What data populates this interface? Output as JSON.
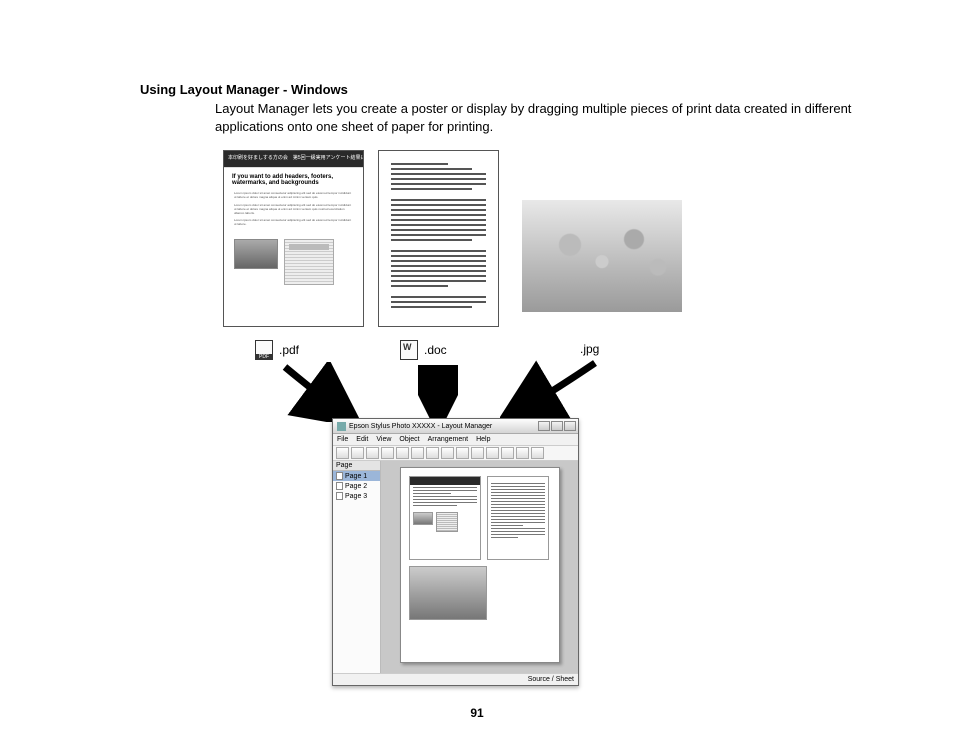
{
  "heading": "Using Layout Manager - Windows",
  "intro": "Layout Manager lets you create a poster or display by dragging multiple pieces of print data created in different applications onto one sheet of paper for printing.",
  "fileTypes": {
    "pdf": ".pdf",
    "doc": ".doc",
    "jpg": ".jpg"
  },
  "layoutManager": {
    "title": "Epson Stylus Photo XXXXX - Layout Manager",
    "menu": [
      "File",
      "Edit",
      "View",
      "Object",
      "Arrangement",
      "Help"
    ],
    "toolbarButtonCount": 14,
    "sidebar": {
      "header": "Page",
      "items": [
        "Page 1",
        "Page 2",
        "Page 3"
      ],
      "selectedIndex": 0
    },
    "status": {
      "label": "Source / Sheet"
    }
  },
  "pageNumber": "91",
  "colors": {
    "text": "#000000",
    "border": "#666666",
    "windowBg": "#eeeeee",
    "canvasBg": "#c8c8c8",
    "selection": "#9bb6d9"
  }
}
